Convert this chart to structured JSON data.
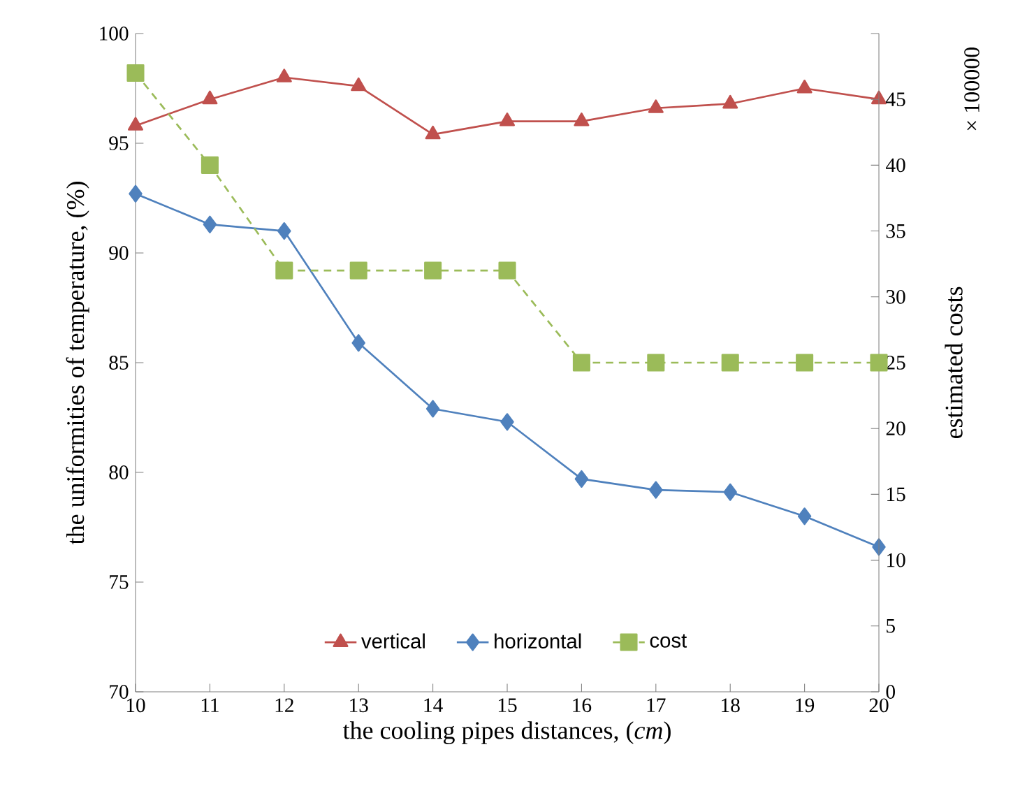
{
  "chart_data": {
    "type": "line",
    "xlabel": "the cooling pipes distances, (*cm*)",
    "ylabel": "the uniformities of temperature,  (%)",
    "y2label": "estimated costs",
    "annotations": [
      "× 100000"
    ],
    "x": [
      10,
      11,
      12,
      13,
      14,
      15,
      16,
      17,
      18,
      19,
      20
    ],
    "xlim": [
      10,
      20
    ],
    "xticks": [
      10,
      11,
      12,
      13,
      14,
      15,
      16,
      17,
      18,
      19,
      20
    ],
    "ylim": [
      70,
      100
    ],
    "yticks": [
      70,
      75,
      80,
      85,
      90,
      95,
      100
    ],
    "y2lim": [
      0,
      50
    ],
    "y2ticks": [
      0,
      5,
      10,
      15,
      20,
      25,
      30,
      35,
      40,
      45,
      {
        "value": 50,
        "label": null
      }
    ],
    "legend": "bottom",
    "series": [
      {
        "name": "vertical",
        "color": "#c0504d",
        "marker": "triangle",
        "line_style": "solid",
        "values": [
          95.8,
          97.0,
          98.0,
          97.6,
          95.4,
          96.0,
          96.0,
          96.6,
          96.8,
          97.5,
          97.0
        ]
      },
      {
        "name": "horizontal",
        "color": "#4f81bd",
        "marker": "diamond",
        "line_style": "solid",
        "values": [
          92.7,
          91.3,
          91.0,
          85.9,
          82.9,
          82.3,
          79.7,
          79.2,
          79.1,
          78.0,
          76.6
        ]
      },
      {
        "name": "cost",
        "color": "#9bbb59",
        "marker": "square",
        "line_style": "dashed",
        "axis": "y2",
        "values": [
          47,
          40,
          32,
          32,
          32,
          32,
          25,
          25,
          25,
          25,
          25
        ]
      }
    ]
  }
}
